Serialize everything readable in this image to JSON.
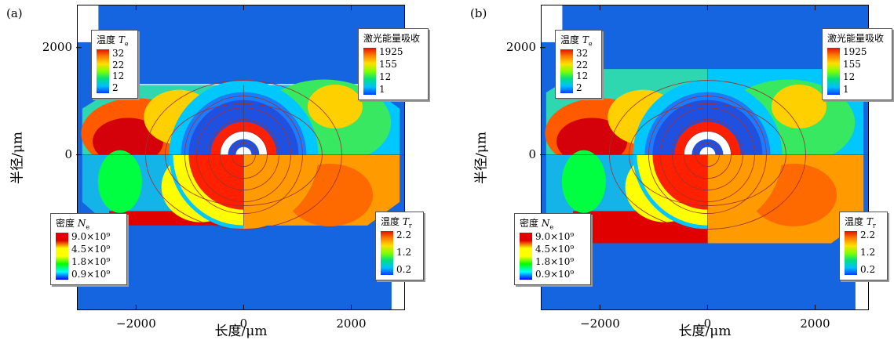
{
  "chart_data": [
    {
      "type": "heatmap",
      "panel_label": "(a)",
      "xlabel": "长度/μm",
      "ylabel": "半径/μm",
      "x_ticks": [
        "−2000",
        "0",
        "2000"
      ],
      "x_tick_values": [
        -2000,
        0,
        2000
      ],
      "y_ticks": [
        "2000",
        "0"
      ],
      "y_tick_values": [
        2000,
        0
      ],
      "xlim": [
        -3100,
        3000
      ],
      "ylim": [
        -2900,
        2800
      ],
      "quadrant_fields": [
        "电子温度 Te (upper-left)",
        "激光能量吸收 (upper-right)",
        "电子密度 Ne (lower-left)",
        "辐射温度 Tr (lower-right)"
      ],
      "legends": [
        {
          "title": "温度 ",
          "sym": "T",
          "sub": "e",
          "position": "upper-left",
          "values": [
            "32",
            "22",
            "12",
            "2"
          ]
        },
        {
          "title": "激光能量吸收",
          "sym": "",
          "sub": "",
          "position": "upper-right",
          "values": [
            "1925",
            "155",
            "12",
            "1"
          ]
        },
        {
          "title": "密度 ",
          "sym": "N",
          "sub": "e",
          "position": "lower-left",
          "values": [
            "9.0×10⁹",
            "4.5×10⁹",
            "1.8×10⁹",
            "0.9×10⁹"
          ]
        },
        {
          "title": "温度 ",
          "sym": "T",
          "sub": "r",
          "position": "lower-right",
          "values": [
            "2.2",
            "1.2",
            "0.2"
          ]
        }
      ]
    },
    {
      "type": "heatmap",
      "panel_label": "(b)",
      "xlabel": "长度/μm",
      "ylabel": "半径/μm",
      "x_ticks": [
        "−2000",
        "0",
        "2000"
      ],
      "x_tick_values": [
        -2000,
        0,
        2000
      ],
      "y_ticks": [
        "2000",
        "0"
      ],
      "y_tick_values": [
        2000,
        0
      ],
      "xlim": [
        -3100,
        3000
      ],
      "ylim": [
        -2900,
        2800
      ],
      "quadrant_fields": [
        "电子温度 Te (upper-left)",
        "激光能量吸收 (upper-right)",
        "电子密度 Ne (lower-left)",
        "辐射温度 Tr (lower-right)"
      ],
      "legends": [
        {
          "title": "温度 ",
          "sym": "T",
          "sub": "e",
          "position": "upper-left",
          "values": [
            "32",
            "22",
            "12",
            "2"
          ]
        },
        {
          "title": "激光能量吸收",
          "sym": "",
          "sub": "",
          "position": "upper-right",
          "values": [
            "1925",
            "155",
            "12",
            "1"
          ]
        },
        {
          "title": "密度 ",
          "sym": "N",
          "sub": "e",
          "position": "lower-left",
          "values": [
            "9.0×10⁹",
            "4.5×10⁹",
            "1.8×10⁹",
            "0.9×10⁹"
          ]
        },
        {
          "title": "温度 ",
          "sym": "T",
          "sub": "r",
          "position": "lower-right",
          "values": [
            "2.2",
            "1.2",
            "0.2"
          ]
        }
      ]
    }
  ],
  "colors": {
    "background_blue": "#1565e0",
    "rainbow": [
      "#d4000a",
      "#ff5a00",
      "#ffb000",
      "#ffff00",
      "#7cff3a",
      "#00ff7a",
      "#00e0e0",
      "#00a0ff",
      "#0040ff"
    ]
  }
}
